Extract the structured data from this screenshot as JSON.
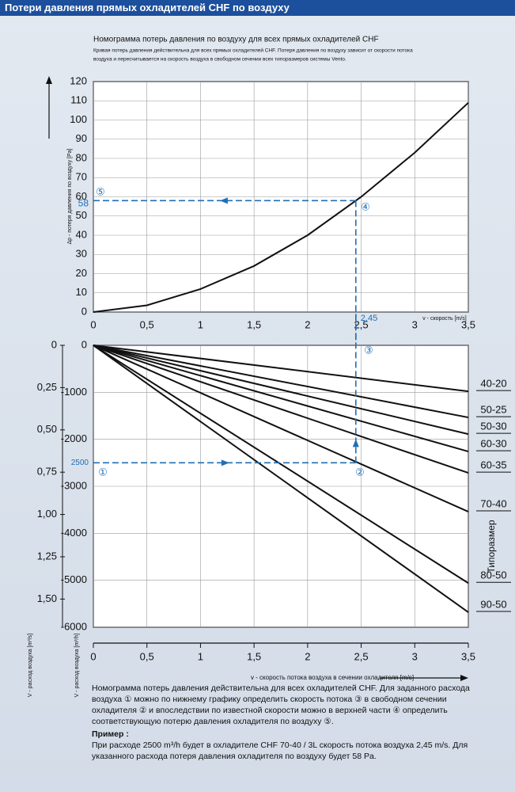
{
  "header": {
    "title": "Потери давления прямых охладителей CHF по воздуху"
  },
  "chart_data": [
    {
      "type": "line",
      "title": "Номограмма потерь давления по воздуху для всех прямых охладителей CHF",
      "subtitle": [
        "Кривая потерь давления действительна для всех прямых охладителей CHF. Потеря давления по воздуху зависит от скорости потока",
        "воздуха и пересчитывается на скорость воздуха в свободном сечении всех типоразмеров системы Vento."
      ],
      "x_label": "v - скорость [m/s]",
      "y_label": "Δp - потеря давления по воздуху [Pa]",
      "x": [
        0,
        0.5,
        1,
        1.5,
        2,
        2.5,
        3,
        3.5
      ],
      "values": [
        0,
        3.5,
        12,
        24,
        40,
        60,
        83,
        109
      ],
      "color": "#111111",
      "xlim": [
        0,
        3.5
      ],
      "xticks": [
        0,
        {
          "value": 0.5,
          "label": "0,5"
        },
        1,
        {
          "value": 1.5,
          "label": "1,5"
        },
        2,
        {
          "value": 2.5,
          "label": "2,5"
        },
        3,
        {
          "value": 3.5,
          "label": "3,5"
        }
      ],
      "ylim": [
        0,
        120
      ],
      "yticks": [
        0,
        10,
        20,
        30,
        40,
        50,
        60,
        70,
        80,
        90,
        100,
        110,
        120
      ],
      "grid": true,
      "reference": {
        "x": 2.45,
        "x_label": "2,45",
        "y": 58,
        "color": "#1f6fb5"
      },
      "markers": [
        "⑤",
        "④"
      ]
    },
    {
      "type": "line",
      "x_label": "v - скорость потока воздуха в сечении охладителя [m/s]",
      "y_label": "V - расход воздуха [m³/h]",
      "y2_label": "V - расход воздуха [m³/s]",
      "legend_title": "Типоразмер",
      "x": [
        0,
        3.5
      ],
      "series": [
        {
          "name": "40-20",
          "color": "#111111",
          "values": [
            0,
            -980
          ]
        },
        {
          "name": "50-25",
          "color": "#111111",
          "values": [
            0,
            -1535
          ]
        },
        {
          "name": "50-30",
          "color": "#111111",
          "values": [
            0,
            -1890
          ]
        },
        {
          "name": "60-30",
          "color": "#111111",
          "values": [
            0,
            -2260
          ]
        },
        {
          "name": "60-35",
          "color": "#111111",
          "values": [
            0,
            -2715
          ]
        },
        {
          "name": "70-40",
          "color": "#111111",
          "values": [
            0,
            -3540
          ]
        },
        {
          "name": "80-50",
          "color": "#111111",
          "values": [
            0,
            -5060
          ]
        },
        {
          "name": "90-50",
          "color": "#111111",
          "values": [
            0,
            -5680
          ]
        }
      ],
      "xlim": [
        0,
        3.5
      ],
      "xticks": [
        0,
        {
          "value": 0.5,
          "label": "0,5"
        },
        1,
        {
          "value": 1.5,
          "label": "1,5"
        },
        2,
        {
          "value": 2.5,
          "label": "2,5"
        },
        3,
        {
          "value": 3.5,
          "label": "3,5"
        }
      ],
      "ylim": [
        -6000,
        0
      ],
      "yticks": [
        0,
        -1000,
        -2000,
        -3000,
        -4000,
        -5000,
        -6000
      ],
      "y2lim": [
        1.6667,
        0
      ],
      "y2ticks": [
        0,
        {
          "value": 0.25,
          "label": "0,25"
        },
        {
          "value": 0.5,
          "label": "0,50"
        },
        {
          "value": 0.75,
          "label": "0,75"
        },
        {
          "value": 1,
          "label": "1,00"
        },
        {
          "value": 1.25,
          "label": "1,25"
        },
        {
          "value": 1.5,
          "label": "1,50"
        }
      ],
      "grid": true,
      "reference": {
        "x": 2.45,
        "y": -2500,
        "y_label": "2500",
        "color": "#1f6fb5"
      },
      "markers": [
        "①",
        "②",
        "③"
      ]
    }
  ],
  "footer": {
    "text": "Номограмма потерь давления действительна для всех охладителей CHF. Для заданного расхода воздуха ① можно по нижнему графику определить скорость потока ③ в свободном сечении охладителя ② и впоследствии по известной скорости можно в верхней части ④ определить соответствующую потерю давления охладителя по воздуху ⑤.",
    "example_title": "Пример :",
    "example": "При расходе 2500 m³/h будет в охладителе CHF 70-40 / 3L скорость потока воздуха 2,45 m/s. Для указанного расхода потеря давления охладителя по воздуху будет 58 Pa."
  }
}
